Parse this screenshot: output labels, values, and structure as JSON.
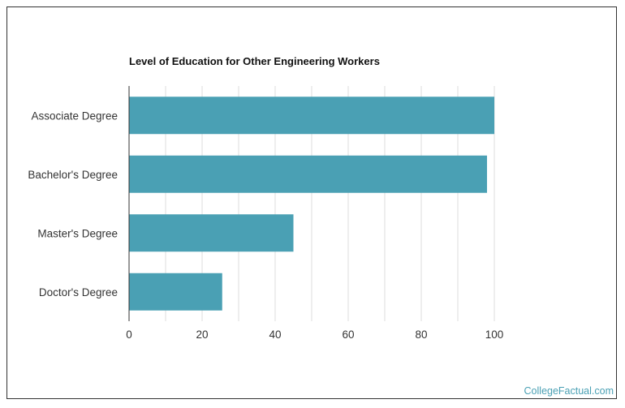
{
  "chart_data": {
    "type": "bar",
    "orientation": "horizontal",
    "title": "Level of Education for Other Engineering Workers",
    "categories": [
      "Associate Degree",
      "Bachelor's Degree",
      "Master's Degree",
      "Doctor's Degree"
    ],
    "values": [
      100,
      98,
      45,
      25.5
    ],
    "xlim": [
      0,
      100
    ],
    "xticks": [
      "0",
      "20",
      "40",
      "60",
      "80",
      "100"
    ],
    "grid": true,
    "bar_color": "#4aa0b4"
  },
  "footer": {
    "credit": "CollegeFactual.com"
  }
}
